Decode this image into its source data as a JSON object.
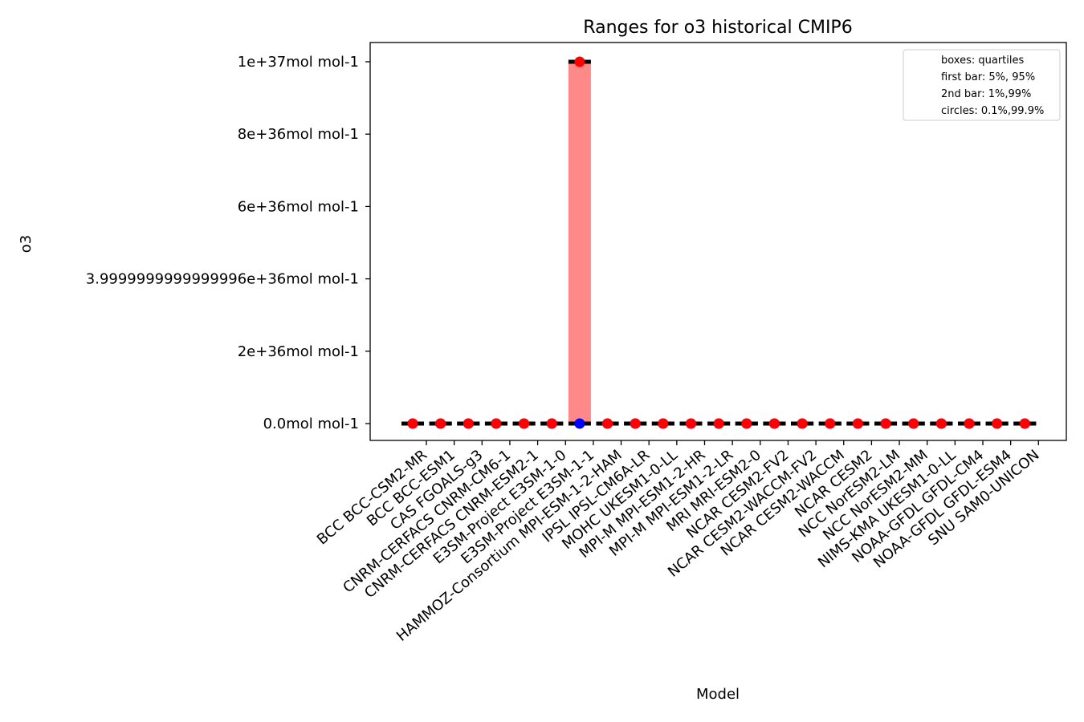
{
  "chart_data": {
    "type": "box",
    "title": "Ranges for o3 historical CMIP6",
    "xlabel": "Model",
    "ylabel": "o3",
    "ylim": [
      -5e+35,
      1.05e+37
    ],
    "yticks": [
      0,
      2e+36,
      4e+36,
      6e+36,
      8e+36,
      1e+37
    ],
    "ytick_labels": [
      "0.0mol mol-1",
      "2e+36mol mol-1",
      "3.9999999999999996e+36mol mol-1",
      "6e+36mol mol-1",
      "8e+36mol mol-1",
      "1e+37mol mol-1"
    ],
    "categories": [
      "BCC BCC-CSM2-MR",
      "BCC BCC-ESM1",
      "CAS FGOALS-g3",
      "CNRM-CERFACS CNRM-CM6-1",
      "CNRM-CERFACS CNRM-ESM2-1",
      "E3SM-Project E3SM-1-0",
      "E3SM-Project E3SM-1-1",
      "HAMMOZ-Consortium MPI-ESM-1-2-HAM",
      "IPSL IPSL-CM6A-LR",
      "MOHC UKESM1-0-LL",
      "MPI-M MPI-ESM1-2-HR",
      "MPI-M MPI-ESM1-2-LR",
      "MRI MRI-ESM2-0",
      "NCAR CESM2-FV2",
      "NCAR CESM2-WACCM-FV2",
      "NCAR CESM2-WACCM",
      "NCAR CESM2",
      "NCC NorESM2-LM",
      "NCC NorESM2-MM",
      "NIMS-KMA UKESM1-0-LL",
      "NOAA-GFDL GFDL-CM4",
      "NOAA-GFDL GFDL-ESM4",
      "SNU SAM0-UNICON"
    ],
    "series": [
      {
        "q1": [
          0,
          0,
          0,
          0,
          0,
          0,
          0,
          0,
          0,
          0,
          0,
          0,
          0,
          0,
          0,
          0,
          0,
          0,
          0,
          0,
          0,
          0,
          0
        ],
        "q3": [
          0,
          0,
          0,
          0,
          0,
          0,
          1e+37,
          0,
          0,
          0,
          0,
          0,
          0,
          0,
          0,
          0,
          0,
          0,
          0,
          0,
          0,
          0,
          0
        ],
        "p5": [
          0,
          0,
          0,
          0,
          0,
          0,
          0,
          0,
          0,
          0,
          0,
          0,
          0,
          0,
          0,
          0,
          0,
          0,
          0,
          0,
          0,
          0,
          0
        ],
        "p95": [
          0,
          0,
          0,
          0,
          0,
          0,
          1e+37,
          0,
          0,
          0,
          0,
          0,
          0,
          0,
          0,
          0,
          0,
          0,
          0,
          0,
          0,
          0,
          0
        ],
        "p1": [
          0,
          0,
          0,
          0,
          0,
          0,
          0,
          0,
          0,
          0,
          0,
          0,
          0,
          0,
          0,
          0,
          0,
          0,
          0,
          0,
          0,
          0,
          0
        ],
        "p99": [
          0,
          0,
          0,
          0,
          0,
          0,
          1e+37,
          0,
          0,
          0,
          0,
          0,
          0,
          0,
          0,
          0,
          0,
          0,
          0,
          0,
          0,
          0,
          0
        ],
        "p01": [
          0,
          0,
          0,
          0,
          0,
          0,
          0,
          0,
          0,
          0,
          0,
          0,
          0,
          0,
          0,
          0,
          0,
          0,
          0,
          0,
          0,
          0,
          0
        ],
        "p999": [
          0,
          0,
          0,
          0,
          0,
          0,
          1e+37,
          0,
          0,
          0,
          0,
          0,
          0,
          0,
          0,
          0,
          0,
          0,
          0,
          0,
          0,
          0,
          0
        ]
      }
    ],
    "legend": {
      "position": "upper right",
      "entries": [
        "boxes: quartiles",
        "first bar: 5%, 95%",
        "2nd bar: 1%,99%",
        "circles: 0.1%,99.9%"
      ]
    },
    "colors": {
      "box": "#ff8888",
      "bar": "#000000",
      "high_circle": "#ff0000",
      "low_circle": "#0000ff"
    }
  }
}
